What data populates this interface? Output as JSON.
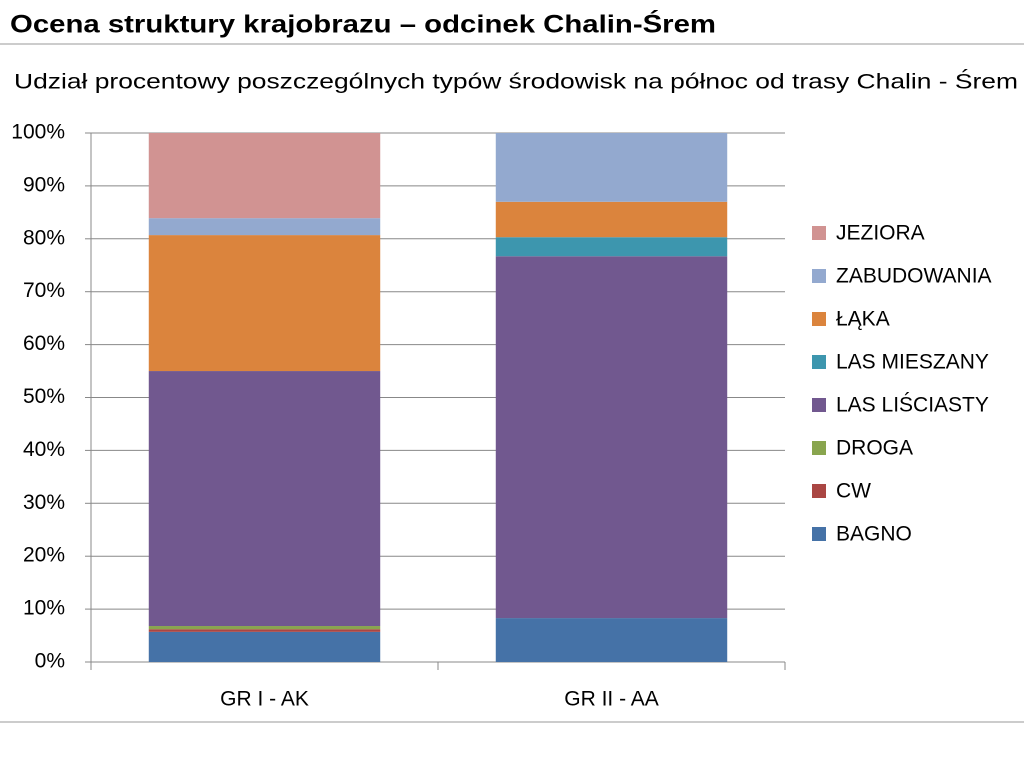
{
  "slide_title": "Ocena struktury krajobrazu – odcinek Chalin-Śrem",
  "chart_data": {
    "type": "stacked_bar",
    "title": "Udział procentowy  poszczególnych typów środowisk na  północ od trasy  Chalin - Śrem",
    "categories": [
      "GR I - AK",
      "GR II - AA"
    ],
    "series": [
      {
        "name": "BAGNO",
        "color": "#4572a7",
        "values": [
          5.7,
          8.3
        ]
      },
      {
        "name": "CW",
        "color": "#aa4643",
        "values": [
          0.5,
          0
        ]
      },
      {
        "name": "DROGA",
        "color": "#89a54e",
        "values": [
          0.6,
          0
        ]
      },
      {
        "name": "LAS LIŚCIASTY",
        "color": "#71588f",
        "values": [
          48.2,
          68.4
        ]
      },
      {
        "name": "LAS MIESZANY",
        "color": "#3d96ae",
        "values": [
          0,
          3.6
        ]
      },
      {
        "name": "ŁĄKA",
        "color": "#db843d",
        "values": [
          25.7,
          6.7
        ]
      },
      {
        "name": "ZABUDOWANIA",
        "color": "#93a9cf",
        "values": [
          3.2,
          13
        ]
      },
      {
        "name": "JEZIORA",
        "color": "#d19392",
        "values": [
          16.1,
          0
        ]
      }
    ],
    "ylim": [
      0,
      100
    ],
    "yticks": [
      {
        "value": 0,
        "label": "0%"
      },
      {
        "value": 10,
        "label": "10%"
      },
      {
        "value": 20,
        "label": "20%"
      },
      {
        "value": 30,
        "label": "30%"
      },
      {
        "value": 40,
        "label": "40%"
      },
      {
        "value": 50,
        "label": "50%"
      },
      {
        "value": 60,
        "label": "60%"
      },
      {
        "value": 70,
        "label": "70%"
      },
      {
        "value": 80,
        "label": "80%"
      },
      {
        "value": 90,
        "label": "90%"
      },
      {
        "value": 100,
        "label": "100%"
      }
    ],
    "grid": true,
    "legend": "right"
  }
}
